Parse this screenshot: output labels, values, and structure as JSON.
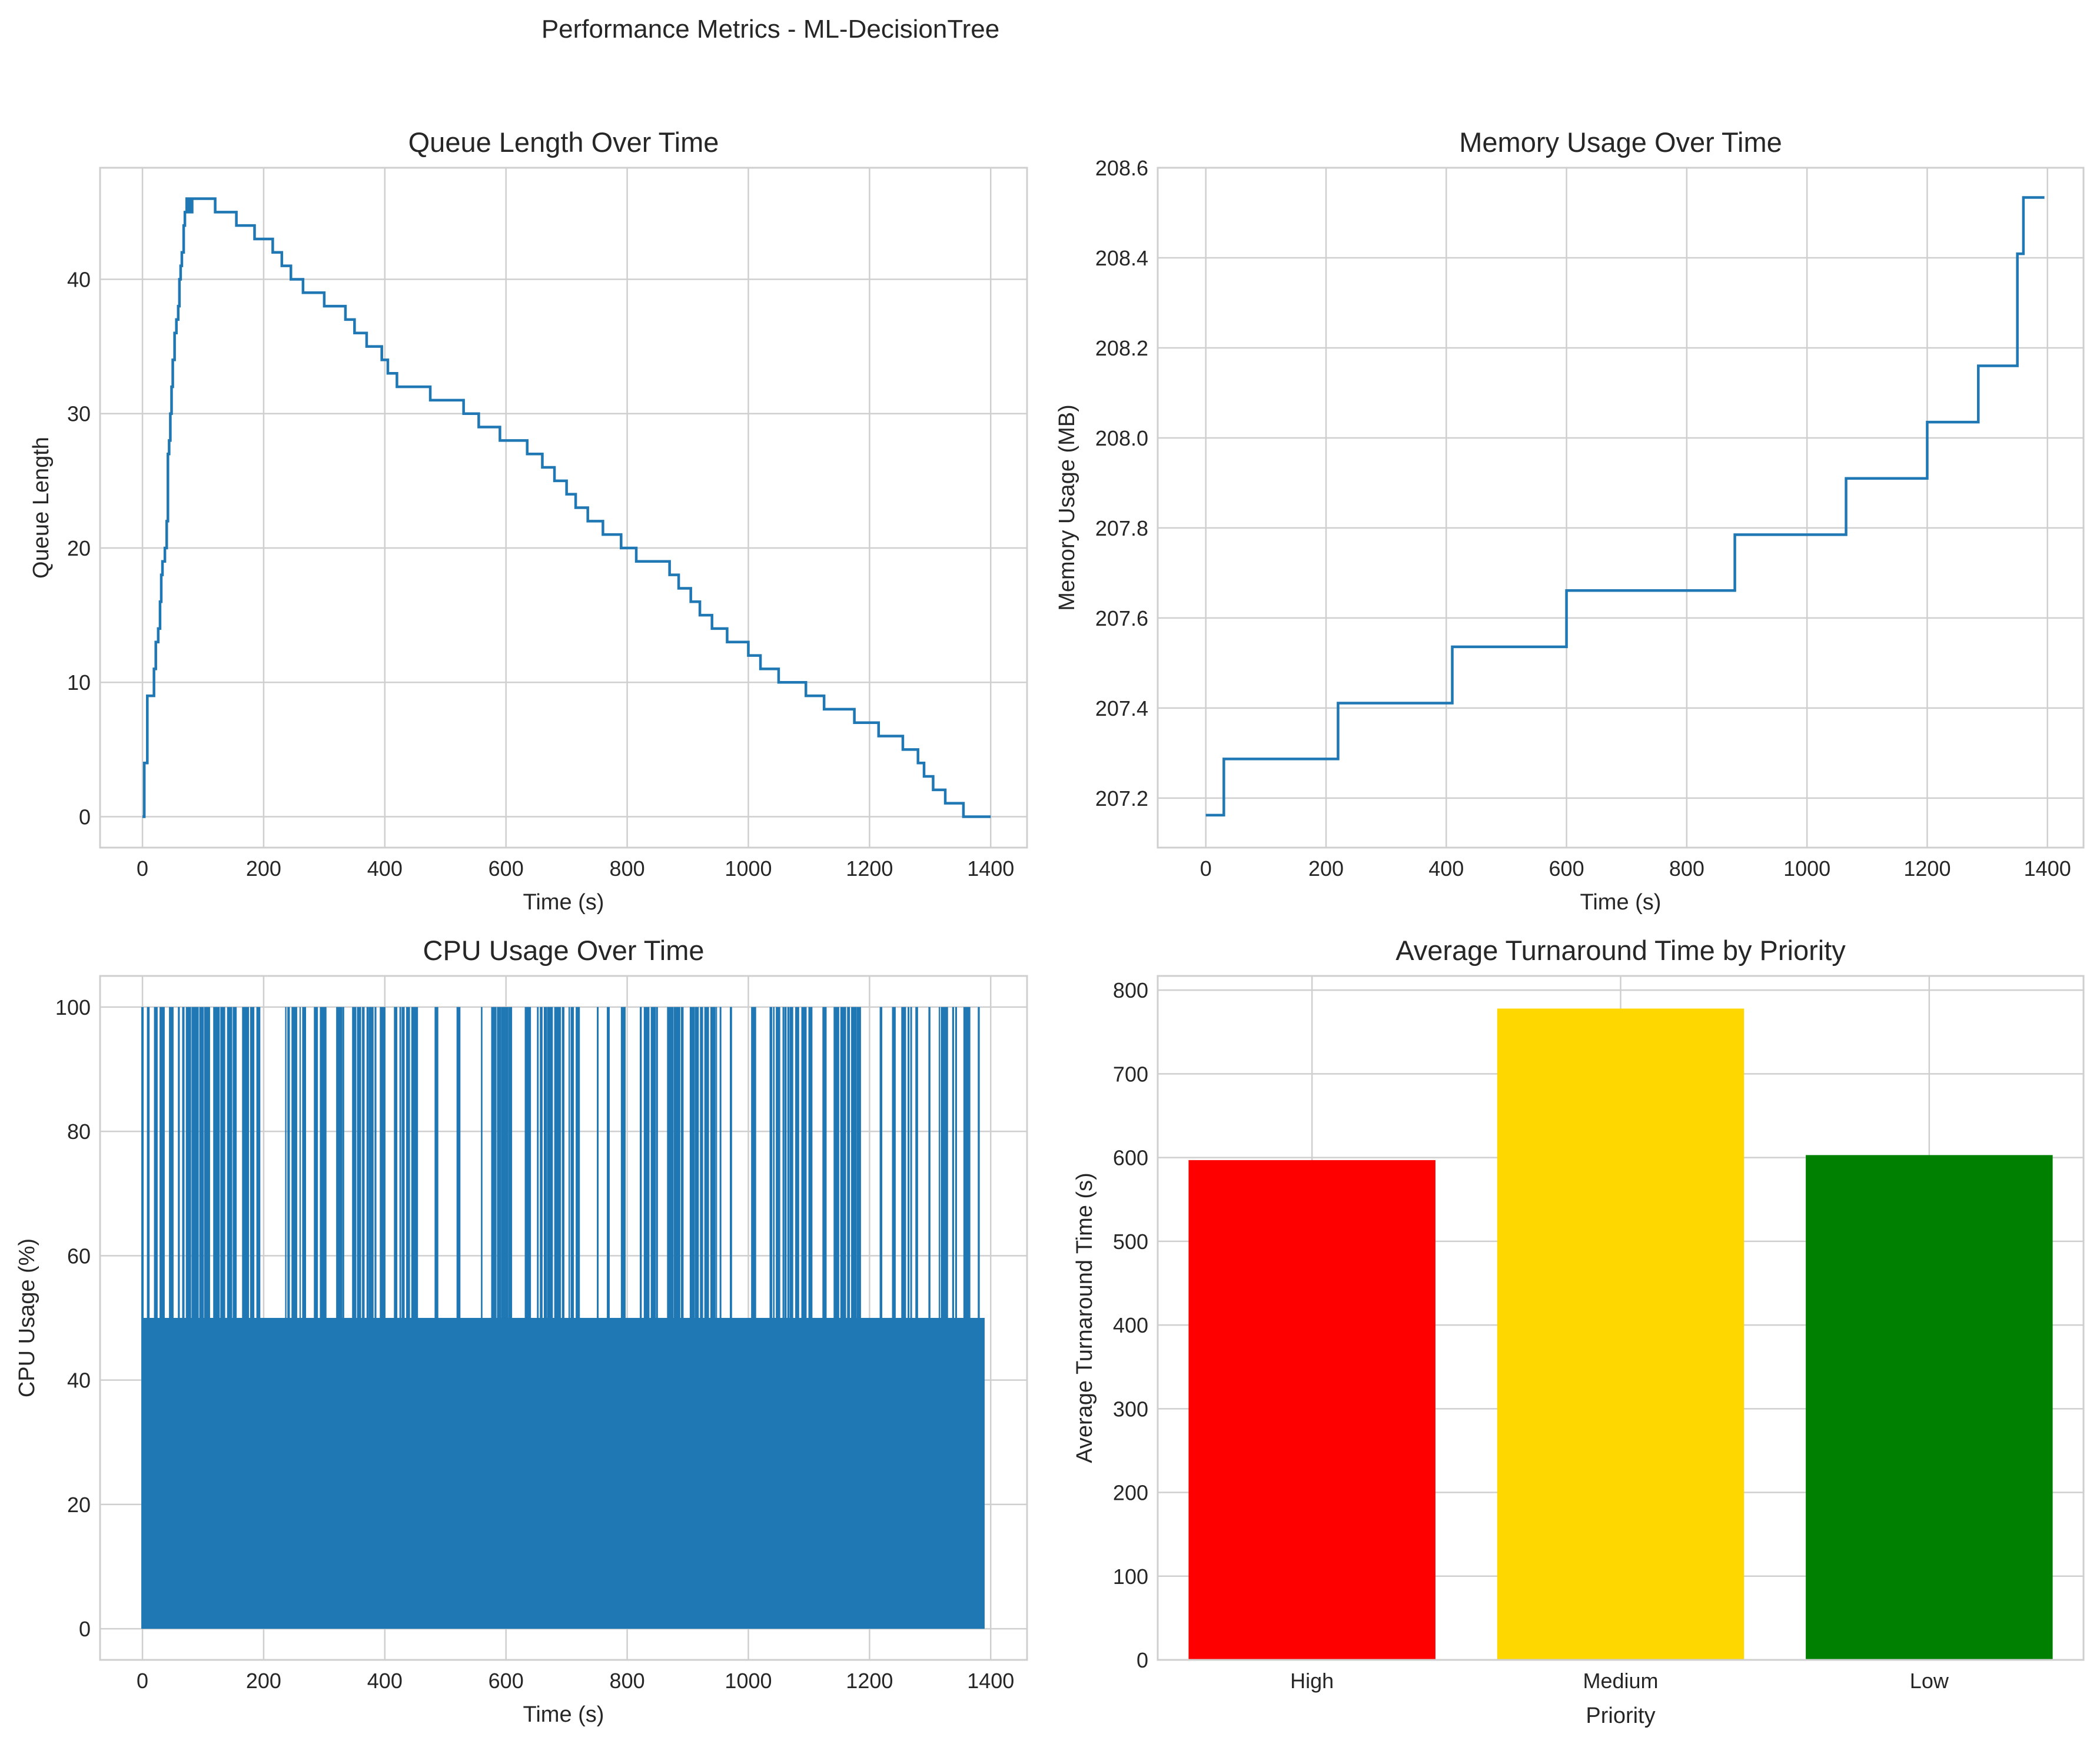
{
  "figure": {
    "suptitle": "Performance Metrics - ML-DecisionTree",
    "line_color": "#1f77b4"
  },
  "chart_data": [
    {
      "id": "queue",
      "type": "line",
      "title": "Queue Length Over Time",
      "xlabel": "Time (s)",
      "ylabel": "Queue Length",
      "xlim": [
        -70,
        1460
      ],
      "ylim": [
        -2.3,
        48.3
      ],
      "xticks": [
        0,
        200,
        400,
        600,
        800,
        1000,
        1200,
        1400
      ],
      "yticks": [
        0,
        10,
        20,
        30,
        40
      ],
      "grid": true,
      "step": true,
      "series": [
        {
          "color": "#1f77b4",
          "x": [
            0,
            3,
            8,
            19,
            22,
            26,
            29,
            31,
            33,
            37,
            40,
            42,
            44,
            46,
            48,
            50,
            53,
            56,
            59,
            61,
            63,
            65,
            68,
            70,
            73,
            75,
            78,
            80,
            82,
            85,
            88,
            90,
            120,
            155,
            185,
            215,
            230,
            245,
            265,
            300,
            335,
            350,
            370,
            395,
            405,
            420,
            475,
            530,
            555,
            590,
            635,
            660,
            680,
            700,
            715,
            735,
            760,
            790,
            815,
            870,
            885,
            905,
            920,
            940,
            965,
            1000,
            1020,
            1050,
            1095,
            1125,
            1175,
            1215,
            1255,
            1280,
            1290,
            1305,
            1325,
            1355,
            1375,
            1400
          ],
          "y": [
            0,
            4,
            9,
            11,
            13,
            14,
            16,
            18,
            19,
            20,
            22,
            27,
            28,
            30,
            32,
            34,
            36,
            37,
            38,
            40,
            41,
            42,
            44,
            45,
            46,
            45,
            46,
            45,
            46,
            46,
            46,
            46,
            45,
            44,
            43,
            42,
            41,
            40,
            39,
            38,
            37,
            36,
            35,
            34,
            33,
            32,
            31,
            30,
            29,
            28,
            27,
            26,
            25,
            24,
            23,
            22,
            21,
            20,
            19,
            18,
            17,
            16,
            15,
            14,
            13,
            12,
            11,
            10,
            9,
            8,
            7,
            6,
            5,
            4,
            3,
            2,
            1,
            0,
            0,
            0
          ]
        }
      ]
    },
    {
      "id": "memory",
      "type": "line",
      "title": "Memory Usage Over Time",
      "xlabel": "Time (s)",
      "ylabel": "Memory Usage (MB)",
      "xlim": [
        -80,
        1460
      ],
      "ylim": [
        207.09,
        208.6
      ],
      "xticks": [
        0,
        200,
        400,
        600,
        800,
        1000,
        1200,
        1400
      ],
      "yticks": [
        207.2,
        207.4,
        207.6,
        207.8,
        208.0,
        208.2,
        208.4,
        208.6
      ],
      "ytick_decimals": 1,
      "grid": true,
      "step": true,
      "series": [
        {
          "color": "#1f77b4",
          "x": [
            0,
            30,
            220,
            410,
            600,
            880,
            1065,
            1200,
            1285,
            1350,
            1360,
            1395
          ],
          "y": [
            207.162,
            207.287,
            207.411,
            207.536,
            207.661,
            207.785,
            207.91,
            208.035,
            208.16,
            208.409,
            208.534,
            208.534
          ]
        }
      ]
    },
    {
      "id": "cpu",
      "type": "line",
      "title": "CPU Usage Over Time",
      "xlabel": "Time (s)",
      "ylabel": "CPU Usage (%)",
      "xlim": [
        -70,
        1460
      ],
      "ylim": [
        -5,
        105
      ],
      "xticks": [
        0,
        200,
        400,
        600,
        800,
        1000,
        1200,
        1400
      ],
      "yticks": [
        0,
        20,
        40,
        60,
        80,
        100
      ],
      "grid": true,
      "x_range": [
        0,
        1390
      ],
      "levels": [
        0,
        50,
        100
      ],
      "fill_color": "#1f77b4",
      "series": [
        {
          "color": "#1f77b4",
          "description_values": "rapid oscillation between 0, 50 and 100 percent from t=0 to t=1390 s"
        }
      ]
    },
    {
      "id": "turnaround",
      "type": "bar",
      "title": "Average Turnaround Time by Priority",
      "xlabel": "Priority",
      "ylabel": "Average Turnaround Time (s)",
      "categories": [
        "High",
        "Medium",
        "Low"
      ],
      "values": [
        597,
        778,
        603
      ],
      "colors": [
        "#ff0000",
        "#ffd700",
        "#008000"
      ],
      "ylim": [
        0,
        817
      ],
      "yticks": [
        0,
        100,
        200,
        300,
        400,
        500,
        600,
        700,
        800
      ],
      "grid": true
    }
  ]
}
